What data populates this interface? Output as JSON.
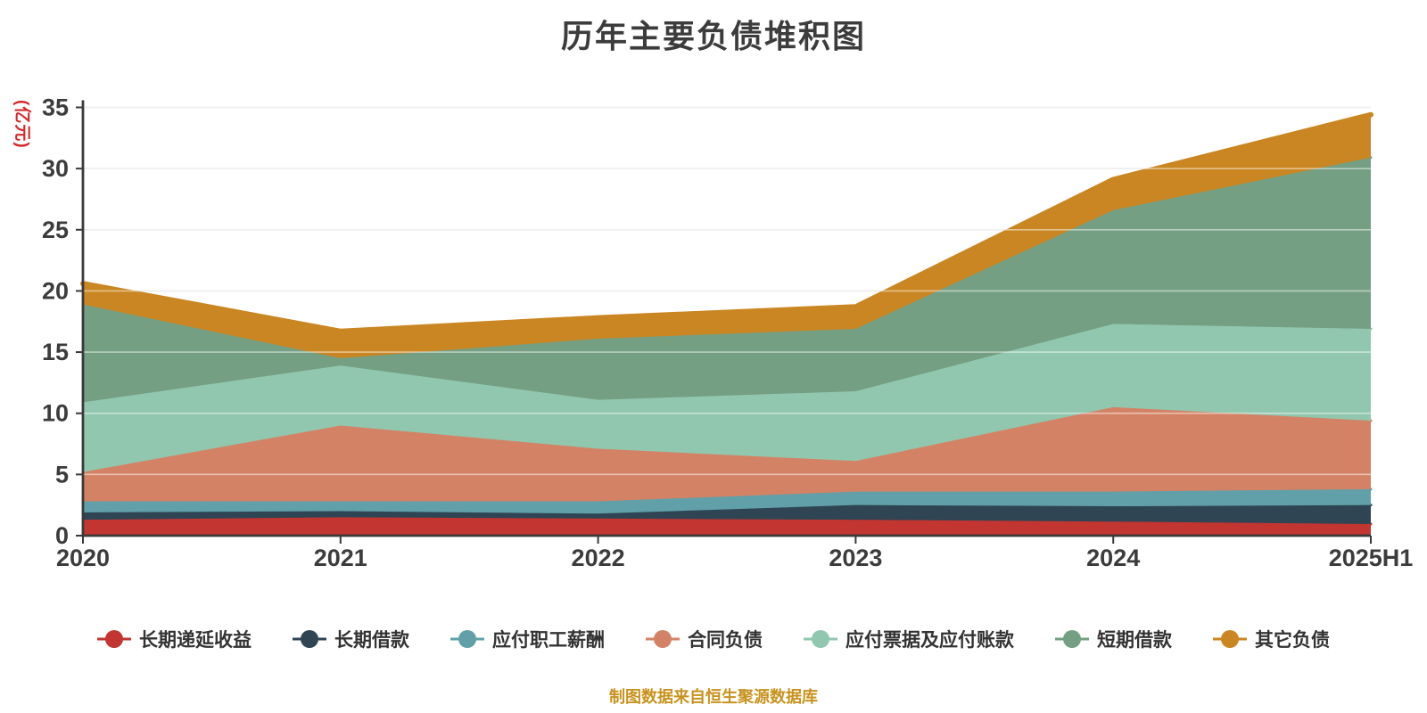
{
  "title": "历年主要负债堆积图",
  "y_axis_name": "(亿元)",
  "footer": "制图数据来自恒生聚源数据库",
  "colors": {
    "background": "#ffffff",
    "title_text": "#3c3c3c",
    "axis_line": "#3a3a3a",
    "axis_tick_text": "#3c3c3c",
    "gridline": "#dcdcdc",
    "gridline_overlay": "rgba(255,255,255,0.5)",
    "y_axis_name_text": "#d42a2a",
    "footer_text": "#c8931f",
    "legend_text": "#333333"
  },
  "chart_data": {
    "type": "area",
    "stacked": true,
    "title": "历年主要负债堆积图",
    "ylabel": "(亿元)",
    "xlabel": "",
    "x": [
      "2020",
      "2021",
      "2022",
      "2023",
      "2024",
      "2025H1"
    ],
    "series": [
      {
        "name": "长期递延收益",
        "color": "#c23531",
        "values": [
          1.3,
          1.5,
          1.4,
          1.3,
          1.15,
          0.95
        ]
      },
      {
        "name": "长期借款",
        "color": "#2f4554",
        "values": [
          0.6,
          0.5,
          0.4,
          1.2,
          1.25,
          1.55
        ]
      },
      {
        "name": "应付职工薪酬",
        "color": "#61a0a8",
        "values": [
          0.9,
          0.8,
          1.0,
          1.1,
          1.2,
          1.3
        ]
      },
      {
        "name": "合同负债",
        "color": "#d48265",
        "values": [
          2.4,
          6.2,
          4.3,
          2.5,
          6.9,
          5.6
        ]
      },
      {
        "name": "应付票据及应付账款",
        "color": "#91c7ae",
        "values": [
          5.7,
          4.9,
          4.0,
          5.7,
          6.8,
          7.5
        ]
      },
      {
        "name": "短期借款",
        "color": "#749f83",
        "values": [
          8.0,
          0.6,
          5.0,
          5.1,
          9.3,
          14.0
        ]
      },
      {
        "name": "其它负债",
        "color": "#ca8622",
        "values": [
          1.7,
          2.2,
          1.7,
          1.8,
          2.5,
          3.5
        ]
      }
    ],
    "ylim": [
      0,
      35
    ],
    "y_ticks": [
      0,
      5,
      10,
      15,
      20,
      25,
      30,
      35
    ],
    "grid": true,
    "legend_position": "bottom",
    "legend_icon": "line-circle"
  }
}
